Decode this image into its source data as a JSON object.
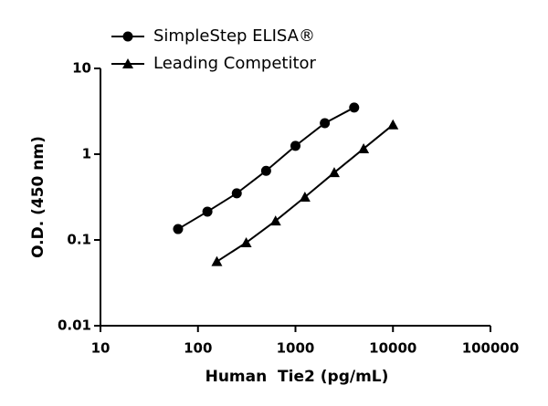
{
  "chart_data": {
    "type": "line",
    "log_x": true,
    "log_y": true,
    "x_label": "Human  Tie2 (pg/mL)",
    "y_label": "O.D. (450 nm)",
    "xlim": [
      10,
      100000
    ],
    "xticks": [
      10,
      100,
      1000,
      10000,
      100000
    ],
    "ylim": [
      0.01,
      10
    ],
    "yticks": [
      0.01,
      0.1,
      1,
      10
    ],
    "series": [
      {
        "name": "SimpleStep ELISA®",
        "color": "#000000",
        "marker": "circle",
        "x": [
          62.5,
          125,
          250,
          500,
          1000,
          2000,
          4000
        ],
        "values": [
          0.134,
          0.214,
          0.35,
          0.64,
          1.25,
          2.3,
          3.5
        ]
      },
      {
        "name": "Leading Competitor",
        "color": "#000000",
        "marker": "triangle",
        "x": [
          156.25,
          312.5,
          625,
          1250,
          2500,
          5000,
          10000
        ],
        "values": [
          0.056,
          0.093,
          0.167,
          0.316,
          0.61,
          1.16,
          2.2
        ]
      }
    ]
  }
}
